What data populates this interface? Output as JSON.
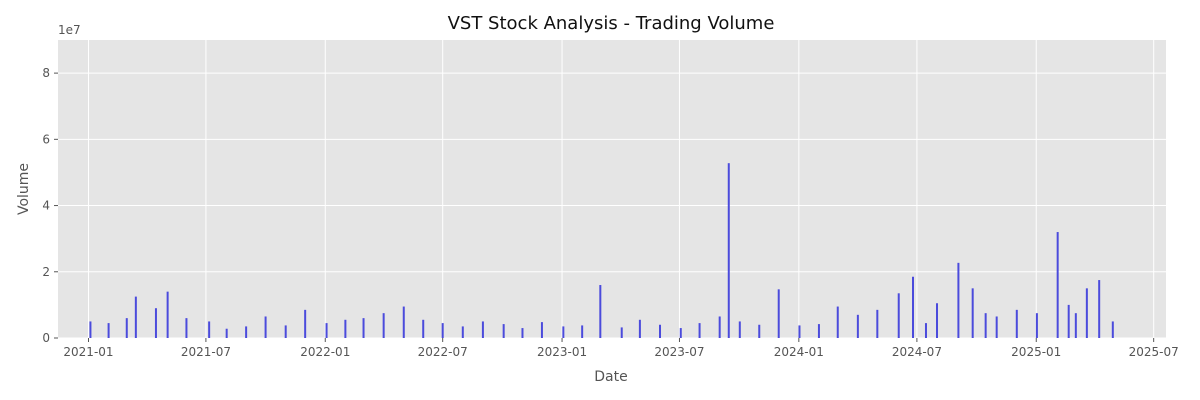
{
  "chart_data": {
    "type": "bar",
    "title": "VST Stock Analysis - Trading Volume",
    "xlabel": "Date",
    "ylabel": "Volume",
    "y_offset_label": "1e7",
    "ylim": [
      0,
      90000000
    ],
    "xlim": [
      "2020-11-15",
      "2025-07-20"
    ],
    "x_ticks": [
      "2021-01",
      "2021-07",
      "2022-01",
      "2022-07",
      "2023-01",
      "2023-07",
      "2024-01",
      "2024-07",
      "2025-01",
      "2025-07"
    ],
    "y_ticks": [
      0,
      2,
      4,
      6,
      8
    ],
    "grid": true,
    "bar_color": "#4b4bdc",
    "background_color": "#e5e5e5",
    "series": [
      {
        "x": [
          "2021-01-04",
          "2021-02-01",
          "2021-03-01",
          "2021-03-15",
          "2021-04-15",
          "2021-05-03",
          "2021-06-01",
          "2021-07-06",
          "2021-08-02",
          "2021-09-01",
          "2021-10-01",
          "2021-11-01",
          "2021-12-01",
          "2022-01-03",
          "2022-02-01",
          "2022-03-01",
          "2022-04-01",
          "2022-05-02",
          "2022-06-01",
          "2022-07-01",
          "2022-08-01",
          "2022-09-01",
          "2022-10-03",
          "2022-11-01",
          "2022-12-01",
          "2023-01-03",
          "2023-02-01",
          "2023-03-01",
          "2023-04-03",
          "2023-05-01",
          "2023-06-01",
          "2023-07-03",
          "2023-08-01",
          "2023-09-01",
          "2023-09-15",
          "2023-10-02",
          "2023-11-01",
          "2023-12-01",
          "2024-01-02",
          "2024-02-01",
          "2024-03-01",
          "2024-04-01",
          "2024-05-01",
          "2024-06-03",
          "2024-06-25",
          "2024-07-15",
          "2024-08-01",
          "2024-09-03",
          "2024-09-25",
          "2024-10-15",
          "2024-11-01",
          "2024-12-02",
          "2025-01-02",
          "2025-02-03",
          "2025-02-20",
          "2025-03-03",
          "2025-03-20",
          "2025-04-08",
          "2025-04-29"
        ],
        "values": [
          5000000,
          4500000,
          6000000,
          12500000,
          9000000,
          14000000,
          6000000,
          5000000,
          2800000,
          3500000,
          6500000,
          3800000,
          8500000,
          4500000,
          5500000,
          6000000,
          7500000,
          9500000,
          5500000,
          4500000,
          3500000,
          5000000,
          4200000,
          3000000,
          4800000,
          3500000,
          3800000,
          16000000,
          3200000,
          5500000,
          4000000,
          3000000,
          4500000,
          6500000,
          52800000,
          5000000,
          4000000,
          14700000,
          3800000,
          4200000,
          9500000,
          7000000,
          8500000,
          13500000,
          18500000,
          4500000,
          10500000,
          22700000,
          15000000,
          7500000,
          6500000,
          8500000,
          7500000,
          32000000,
          10000000,
          7500000,
          15000000,
          17500000,
          5000000
        ]
      }
    ]
  }
}
